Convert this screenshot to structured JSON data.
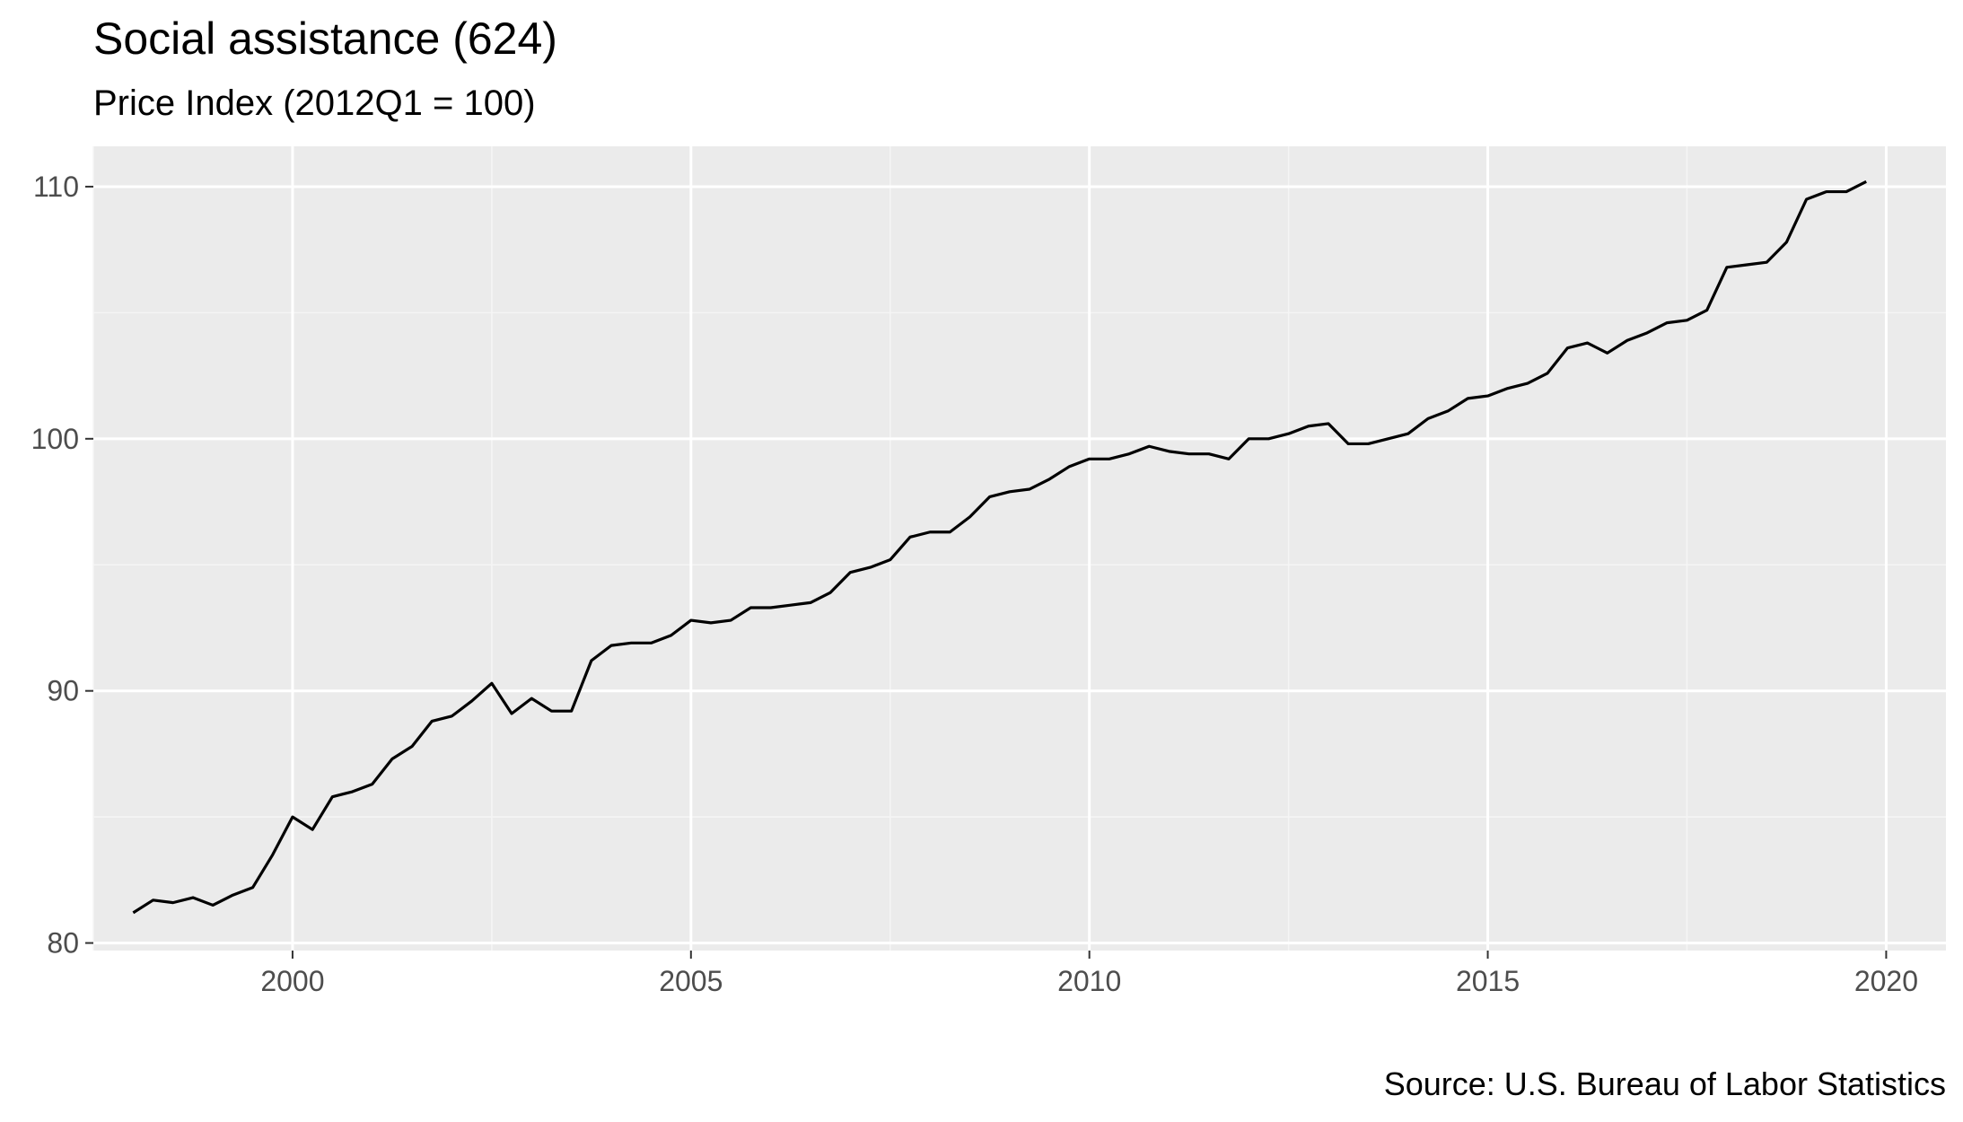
{
  "chart_data": {
    "type": "line",
    "title": "Social assistance (624)",
    "subtitle": "Price Index (2012Q1 = 100)",
    "caption": "Source: U.S. Bureau of Labor Statistics",
    "xlabel": "",
    "ylabel": "",
    "xlim": [
      1997.5,
      2020.75
    ],
    "ylim": [
      79.7,
      111.6
    ],
    "x_ticks": [
      2000,
      2005,
      2010,
      2015,
      2020
    ],
    "x_tick_labels": [
      "2000",
      "2005",
      "2010",
      "2015",
      "2020"
    ],
    "y_ticks": [
      80,
      90,
      100,
      110
    ],
    "y_tick_labels": [
      "80",
      "90",
      "100",
      "110"
    ],
    "grid": true,
    "legend": "none",
    "colors": {
      "panel_background": "#ebebeb",
      "grid_major": "#ffffff",
      "grid_minor": "#f5f5f5",
      "line": "#000000",
      "tick_label": "#4d4d4d",
      "tick_mark": "#333333"
    },
    "series": [
      {
        "x": [
          1998.0,
          1998.25,
          1998.5,
          1998.75,
          1999.0,
          1999.25,
          1999.5,
          1999.75,
          2000.0,
          2000.25,
          2000.5,
          2000.75,
          2001.0,
          2001.25,
          2001.5,
          2001.75,
          2002.0,
          2002.25,
          2002.5,
          2002.75,
          2003.0,
          2003.25,
          2003.5,
          2003.75,
          2004.0,
          2004.25,
          2004.5,
          2004.75,
          2005.0,
          2005.25,
          2005.5,
          2005.75,
          2006.0,
          2006.25,
          2006.5,
          2006.75,
          2007.0,
          2007.25,
          2007.5,
          2007.75,
          2008.0,
          2008.25,
          2008.5,
          2008.75,
          2009.0,
          2009.25,
          2009.5,
          2009.75,
          2010.0,
          2010.25,
          2010.5,
          2010.75,
          2011.0,
          2011.25,
          2011.5,
          2011.75,
          2012.0,
          2012.25,
          2012.5,
          2012.75,
          2013.0,
          2013.25,
          2013.5,
          2013.75,
          2014.0,
          2014.25,
          2014.5,
          2014.75,
          2015.0,
          2015.25,
          2015.5,
          2015.75,
          2016.0,
          2016.25,
          2016.5,
          2016.75,
          2017.0,
          2017.25,
          2017.5,
          2017.75,
          2018.0,
          2018.25,
          2018.5,
          2018.75,
          2019.0,
          2019.25,
          2019.5,
          2019.75
        ],
        "y": [
          81.2,
          81.7,
          81.6,
          81.8,
          81.5,
          81.9,
          82.2,
          83.5,
          85.0,
          84.5,
          85.8,
          86.0,
          86.3,
          87.3,
          87.8,
          88.8,
          89.0,
          89.6,
          90.3,
          89.1,
          89.7,
          89.2,
          89.2,
          91.2,
          91.8,
          91.9,
          91.9,
          92.2,
          92.8,
          92.7,
          92.8,
          93.3,
          93.3,
          93.4,
          93.5,
          93.9,
          94.7,
          94.9,
          95.2,
          96.1,
          96.3,
          96.3,
          96.9,
          97.7,
          97.9,
          98.0,
          98.4,
          98.9,
          99.2,
          99.2,
          99.4,
          99.7,
          99.5,
          99.4,
          99.4,
          99.2,
          100.0,
          100.0,
          100.2,
          100.5,
          100.6,
          99.8,
          99.8,
          100.0,
          100.2,
          100.8,
          101.1,
          101.6,
          101.7,
          102.0,
          102.2,
          102.6,
          103.6,
          103.8,
          103.4,
          103.9,
          104.2,
          104.6,
          104.7,
          105.1,
          106.8,
          106.9,
          107.0,
          107.8,
          109.5,
          109.8,
          109.8,
          110.2
        ]
      }
    ]
  }
}
